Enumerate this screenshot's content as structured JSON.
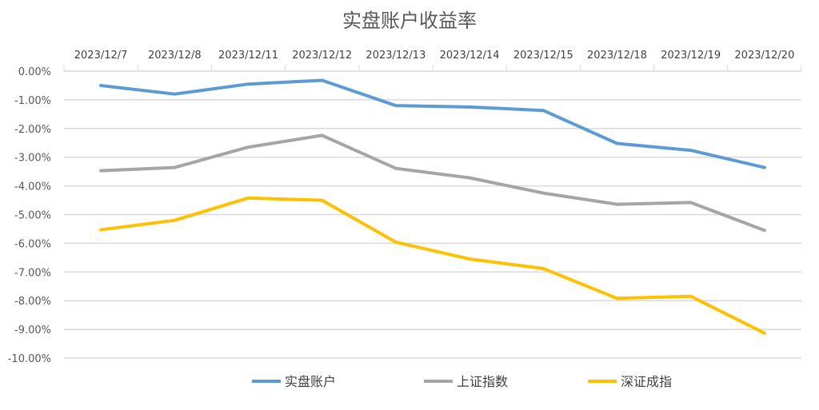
{
  "chart_data": {
    "type": "line",
    "title": "实盘账户收益率",
    "categories": [
      "2023/12/7",
      "2023/12/8",
      "2023/12/11",
      "2023/12/12",
      "2023/12/13",
      "2023/12/14",
      "2023/12/15",
      "2023/12/18",
      "2023/12/19",
      "2023/12/20"
    ],
    "y_tick_labels": [
      "0.00%",
      "-1.00%",
      "-2.00%",
      "-3.00%",
      "-4.00%",
      "-5.00%",
      "-6.00%",
      "-7.00%",
      "-8.00%",
      "-9.00%",
      "-10.00%"
    ],
    "ylim": [
      -10,
      0
    ],
    "y_unit": "percent",
    "x_axis_position": "top",
    "grid": true,
    "legend_position": "bottom",
    "series": [
      {
        "name": "实盘账户",
        "color": "#5B9BD5",
        "values": [
          -0.5,
          -0.8,
          -0.45,
          -0.32,
          -1.2,
          -1.25,
          -1.37,
          -2.52,
          -2.76,
          -3.36
        ]
      },
      {
        "name": "上证指数",
        "color": "#A5A5A5",
        "values": [
          -3.47,
          -3.36,
          -2.65,
          -2.24,
          -3.39,
          -3.72,
          -4.25,
          -4.64,
          -4.58,
          -5.55
        ]
      },
      {
        "name": "深证成指",
        "color": "#FFC000",
        "values": [
          -5.53,
          -5.2,
          -4.42,
          -4.5,
          -5.96,
          -6.55,
          -6.88,
          -7.92,
          -7.85,
          -9.13
        ]
      }
    ]
  }
}
